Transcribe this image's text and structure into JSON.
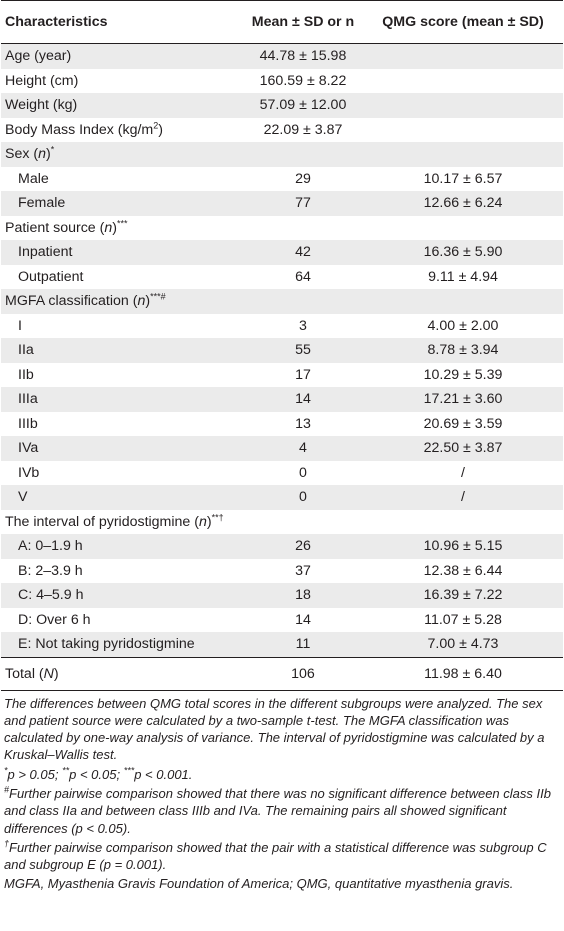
{
  "headers": [
    "Characteristics",
    "Mean ± SD or n",
    "QMG score (mean ± SD)"
  ],
  "rows": [
    {
      "label": "Age (year)",
      "n": "44.78 ± 15.98",
      "qmg": ""
    },
    {
      "label": "Height (cm)",
      "n": "160.59 ± 8.22",
      "qmg": ""
    },
    {
      "label": "Weight (kg)",
      "n": "57.09 ± 12.00",
      "qmg": ""
    },
    {
      "label": "Body Mass Index (kg/m",
      "label_sup": "2",
      "label_after": ")",
      "n": "22.09 ± 3.87",
      "qmg": ""
    },
    {
      "label": "Sex (",
      "label_italic": "n",
      "label_after": ")",
      "label_sup": "*",
      "n": "",
      "qmg": ""
    },
    {
      "label": "Male",
      "n": "29",
      "qmg": "10.17 ± 6.57"
    },
    {
      "label": "Female",
      "n": "77",
      "qmg": "12.66 ± 6.24"
    },
    {
      "label": "Patient source (",
      "label_italic": "n",
      "label_after": ")",
      "label_sup": "***",
      "n": "",
      "qmg": ""
    },
    {
      "label": "Inpatient",
      "n": "42",
      "qmg": "16.36 ± 5.90"
    },
    {
      "label": "Outpatient",
      "n": "64",
      "qmg": "9.11 ± 4.94"
    },
    {
      "label": "MGFA classification (",
      "label_italic": "n",
      "label_after": ")",
      "label_sup": "***#",
      "n": "",
      "qmg": ""
    },
    {
      "label": "I",
      "n": "3",
      "qmg": "4.00 ± 2.00"
    },
    {
      "label": "IIa",
      "n": "55",
      "qmg": "8.78 ± 3.94"
    },
    {
      "label": "IIb",
      "n": "17",
      "qmg": "10.29 ± 5.39"
    },
    {
      "label": "IIIa",
      "n": "14",
      "qmg": "17.21 ± 3.60"
    },
    {
      "label": "IIIb",
      "n": "13",
      "qmg": "20.69 ± 3.59"
    },
    {
      "label": "IVa",
      "n": "4",
      "qmg": "22.50 ± 3.87"
    },
    {
      "label": "IVb",
      "n": "0",
      "qmg": "/"
    },
    {
      "label": "V",
      "n": "0",
      "qmg": "/"
    },
    {
      "label": "The interval of pyridostigmine (",
      "label_italic": "n",
      "label_after": ")",
      "label_sup": "**†",
      "n": "",
      "qmg": ""
    },
    {
      "label": "A: 0–1.9 h",
      "n": "26",
      "qmg": "10.96 ± 5.15"
    },
    {
      "label": "B: 2–3.9 h",
      "n": "37",
      "qmg": "12.38 ± 6.44"
    },
    {
      "label": "C: 4–5.9 h",
      "n": "18",
      "qmg": "16.39 ± 7.22"
    },
    {
      "label": "D: Over 6 h",
      "n": "14",
      "qmg": "11.07 ± 5.28"
    },
    {
      "label": "E: Not taking pyridostigmine",
      "n": "11",
      "qmg": "7.00 ± 4.73"
    }
  ],
  "total": {
    "label": "Total (",
    "label_italic": "N",
    "label_after": ")",
    "n": "106",
    "qmg": "11.98 ± 6.40"
  },
  "notes": {
    "main": "The differences between QMG total scores in the different subgroups were analyzed. The sex and patient source were calculated by a two-sample t-test. The MGFA classification was calculated by one-way analysis of variance. The interval of pyridostigmine was calculated by a Kruskal–Wallis test.",
    "sig_1_sup": "*",
    "sig_1": "p > 0.05; ",
    "sig_2_sup": "**",
    "sig_2": "p < 0.05; ",
    "sig_3_sup": "***",
    "sig_3": "p < 0.001.",
    "hash_sup": "#",
    "hash": "Further pairwise comparison showed that there was no significant difference between class IIb and class IIa and between class IIIb and IVa. The remaining pairs all showed significant differences (p < 0.05).",
    "dagger_sup": "†",
    "dagger": "Further pairwise comparison showed that the pair with a statistical difference was subgroup C and subgroup E (p = 0.001).",
    "abbrev": "MGFA, Myasthenia Gravis Foundation of America; QMG, quantitative myasthenia gravis."
  },
  "colors": {
    "shade": "#ebebeb",
    "text": "#231f20"
  }
}
